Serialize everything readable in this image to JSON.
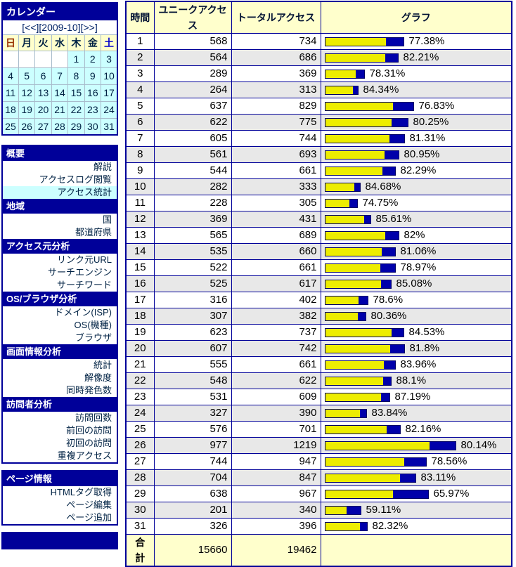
{
  "calendar": {
    "title": "カレンダー",
    "prev_label": "[<<]",
    "month_label": "[2009-10]",
    "next_label": "[>>]",
    "weekdays": [
      {
        "label": "日",
        "color": "#993300"
      },
      {
        "label": "月",
        "color": "#002244"
      },
      {
        "label": "火",
        "color": "#002244"
      },
      {
        "label": "水",
        "color": "#002244"
      },
      {
        "label": "木",
        "color": "#002244"
      },
      {
        "label": "金",
        "color": "#002244"
      },
      {
        "label": "土",
        "color": "#0000CC"
      }
    ],
    "weeks": [
      [
        "",
        "",
        "",
        "",
        "1",
        "2",
        "3"
      ],
      [
        "4",
        "5",
        "6",
        "7",
        "8",
        "9",
        "10"
      ],
      [
        "11",
        "12",
        "13",
        "14",
        "15",
        "16",
        "17"
      ],
      [
        "18",
        "19",
        "20",
        "21",
        "22",
        "23",
        "24"
      ],
      [
        "25",
        "26",
        "27",
        "28",
        "29",
        "30",
        "31"
      ]
    ]
  },
  "menu": {
    "boxes": [
      {
        "sections": [
          {
            "title": "概要",
            "items": [
              {
                "label": "解説"
              },
              {
                "label": "アクセスログ閲覧"
              },
              {
                "label": "アクセス統計",
                "active": true
              }
            ]
          },
          {
            "title": "地域",
            "items": [
              {
                "label": "国"
              },
              {
                "label": "都道府県"
              }
            ]
          },
          {
            "title": "アクセス元分析",
            "items": [
              {
                "label": "リンク元URL"
              },
              {
                "label": "サーチエンジン"
              },
              {
                "label": "サーチワード"
              }
            ]
          },
          {
            "title": "OS/ブラウザ分析",
            "items": [
              {
                "label": "ドメイン(ISP)"
              },
              {
                "label": "OS(機種)"
              },
              {
                "label": "ブラウザ"
              }
            ]
          },
          {
            "title": "画面情報分析",
            "items": [
              {
                "label": "統計"
              },
              {
                "label": "解像度"
              },
              {
                "label": "同時発色数"
              }
            ]
          },
          {
            "title": "訪問者分析",
            "items": [
              {
                "label": "訪問回数"
              },
              {
                "label": "前回の訪問"
              },
              {
                "label": "初回の訪問"
              },
              {
                "label": "重複アクセス"
              }
            ]
          }
        ]
      },
      {
        "sections": [
          {
            "title": "ページ情報",
            "items": [
              {
                "label": "HTMLタグ取得"
              },
              {
                "label": "ページ編集"
              },
              {
                "label": "ページ追加"
              }
            ]
          }
        ]
      }
    ]
  },
  "table": {
    "headers": [
      "時間",
      "ユニークアクセス",
      "トータルアクセス",
      "グラフ"
    ],
    "rows": [
      {
        "hour": "1",
        "unique": 568,
        "total": 734,
        "pct": "77.38%"
      },
      {
        "hour": "2",
        "unique": 564,
        "total": 686,
        "pct": "82.21%"
      },
      {
        "hour": "3",
        "unique": 289,
        "total": 369,
        "pct": "78.31%"
      },
      {
        "hour": "4",
        "unique": 264,
        "total": 313,
        "pct": "84.34%"
      },
      {
        "hour": "5",
        "unique": 637,
        "total": 829,
        "pct": "76.83%"
      },
      {
        "hour": "6",
        "unique": 622,
        "total": 775,
        "pct": "80.25%"
      },
      {
        "hour": "7",
        "unique": 605,
        "total": 744,
        "pct": "81.31%"
      },
      {
        "hour": "8",
        "unique": 561,
        "total": 693,
        "pct": "80.95%"
      },
      {
        "hour": "9",
        "unique": 544,
        "total": 661,
        "pct": "82.29%"
      },
      {
        "hour": "10",
        "unique": 282,
        "total": 333,
        "pct": "84.68%"
      },
      {
        "hour": "11",
        "unique": 228,
        "total": 305,
        "pct": "74.75%"
      },
      {
        "hour": "12",
        "unique": 369,
        "total": 431,
        "pct": "85.61%"
      },
      {
        "hour": "13",
        "unique": 565,
        "total": 689,
        "pct": "82%"
      },
      {
        "hour": "14",
        "unique": 535,
        "total": 660,
        "pct": "81.06%"
      },
      {
        "hour": "15",
        "unique": 522,
        "total": 661,
        "pct": "78.97%"
      },
      {
        "hour": "16",
        "unique": 525,
        "total": 617,
        "pct": "85.08%"
      },
      {
        "hour": "17",
        "unique": 316,
        "total": 402,
        "pct": "78.6%"
      },
      {
        "hour": "18",
        "unique": 307,
        "total": 382,
        "pct": "80.36%"
      },
      {
        "hour": "19",
        "unique": 623,
        "total": 737,
        "pct": "84.53%"
      },
      {
        "hour": "20",
        "unique": 607,
        "total": 742,
        "pct": "81.8%"
      },
      {
        "hour": "21",
        "unique": 555,
        "total": 661,
        "pct": "83.96%"
      },
      {
        "hour": "22",
        "unique": 548,
        "total": 622,
        "pct": "88.1%"
      },
      {
        "hour": "23",
        "unique": 531,
        "total": 609,
        "pct": "87.19%"
      },
      {
        "hour": "24",
        "unique": 327,
        "total": 390,
        "pct": "83.84%"
      },
      {
        "hour": "25",
        "unique": 576,
        "total": 701,
        "pct": "82.16%"
      },
      {
        "hour": "26",
        "unique": 977,
        "total": 1219,
        "pct": "80.14%"
      },
      {
        "hour": "27",
        "unique": 744,
        "total": 947,
        "pct": "78.56%"
      },
      {
        "hour": "28",
        "unique": 704,
        "total": 847,
        "pct": "83.11%"
      },
      {
        "hour": "29",
        "unique": 638,
        "total": 967,
        "pct": "65.97%"
      },
      {
        "hour": "30",
        "unique": 201,
        "total": 340,
        "pct": "59.11%"
      },
      {
        "hour": "31",
        "unique": 326,
        "total": 396,
        "pct": "82.32%"
      }
    ],
    "total_row": {
      "label": "合 計",
      "unique": 15660,
      "total": 19462
    }
  },
  "colors": {
    "header_navy": "#000099",
    "highlight_cyan": "#CCFFFF",
    "header_yellow": "#FFFFCC",
    "calendar_day_cyan": "#CCFFFF",
    "bar_yellow": "#EDED00",
    "bar_blue": "#0000AA",
    "row_alt_gray": "#E8E8E8",
    "sunday_red": "#993300",
    "saturday_blue": "#0000CC"
  }
}
